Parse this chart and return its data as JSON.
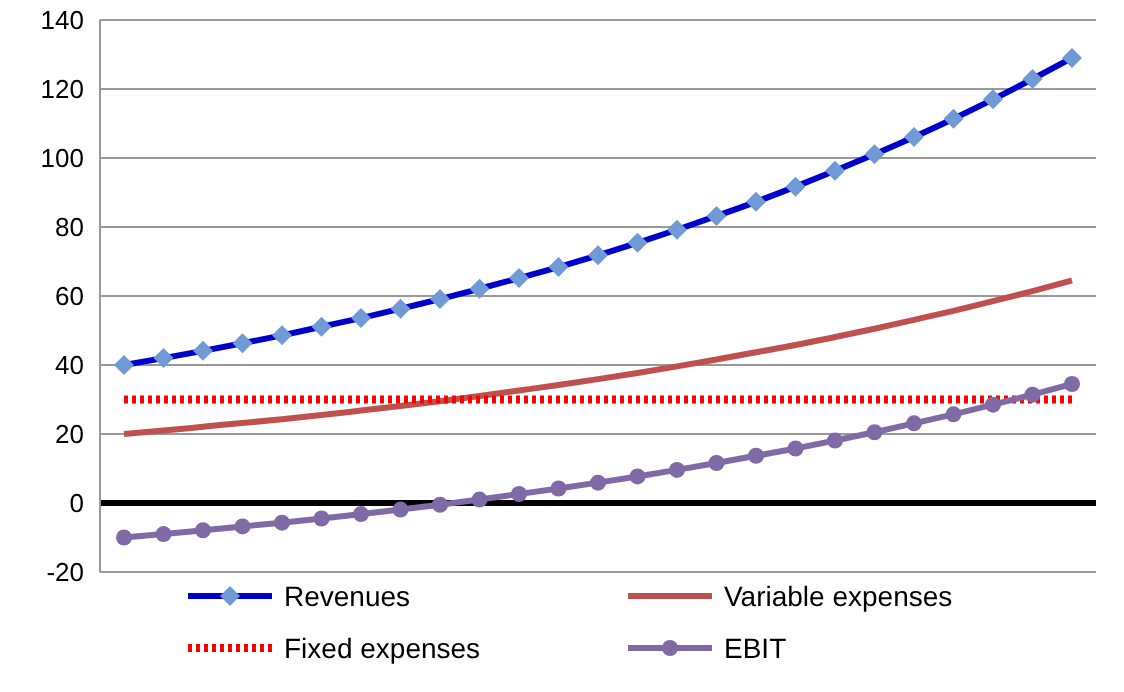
{
  "chart_data": {
    "type": "line",
    "categories": [
      null,
      null,
      null,
      null,
      null,
      null,
      null,
      null,
      null,
      null,
      null,
      null,
      null,
      null,
      null,
      null,
      null,
      null,
      null,
      null,
      null,
      null,
      null,
      null,
      null
    ],
    "series": [
      {
        "name": "Revenues",
        "color": "#0000cc",
        "marker": "diamond",
        "values": [
          40.0,
          42.0,
          44.1,
          46.3,
          48.6,
          51.1,
          53.6,
          56.3,
          59.1,
          62.1,
          65.2,
          68.4,
          71.8,
          75.4,
          79.2,
          83.2,
          87.3,
          91.7,
          96.3,
          101.1,
          106.1,
          111.4,
          117.0,
          122.9,
          129.0
        ]
      },
      {
        "name": "Variable expenses",
        "color": "#c0504d",
        "marker": "none",
        "values": [
          20.0,
          21.0,
          22.1,
          23.2,
          24.3,
          25.5,
          26.8,
          28.1,
          29.5,
          31.0,
          32.6,
          34.2,
          35.9,
          37.7,
          39.6,
          41.6,
          43.7,
          45.8,
          48.1,
          50.5,
          53.1,
          55.7,
          58.5,
          61.4,
          64.5
        ]
      },
      {
        "name": "Fixed expenses",
        "color": "#ff0000",
        "marker": "none",
        "line_style": "dotted",
        "values": [
          30,
          30,
          30,
          30,
          30,
          30,
          30,
          30,
          30,
          30,
          30,
          30,
          30,
          30,
          30,
          30,
          30,
          30,
          30,
          30,
          30,
          30,
          30,
          30,
          30
        ]
      },
      {
        "name": "EBIT",
        "color": "#7f6aa6",
        "marker": "circle",
        "values": [
          -10.0,
          -9.0,
          -7.9,
          -6.8,
          -5.7,
          -4.5,
          -3.2,
          -1.9,
          -0.5,
          1.0,
          2.6,
          4.2,
          5.9,
          7.7,
          9.6,
          11.6,
          13.7,
          15.8,
          18.1,
          20.5,
          23.1,
          25.7,
          28.5,
          31.4,
          34.5
        ]
      }
    ],
    "ylim": [
      -20,
      140
    ],
    "yticks": [
      -20,
      0,
      20,
      40,
      60,
      80,
      100,
      120,
      140
    ],
    "grid": "y",
    "legend": "bottom",
    "tick_labels": "y",
    "ref_lines": [
      {
        "axis": "y",
        "value": 0,
        "color": "#000000"
      }
    ]
  }
}
